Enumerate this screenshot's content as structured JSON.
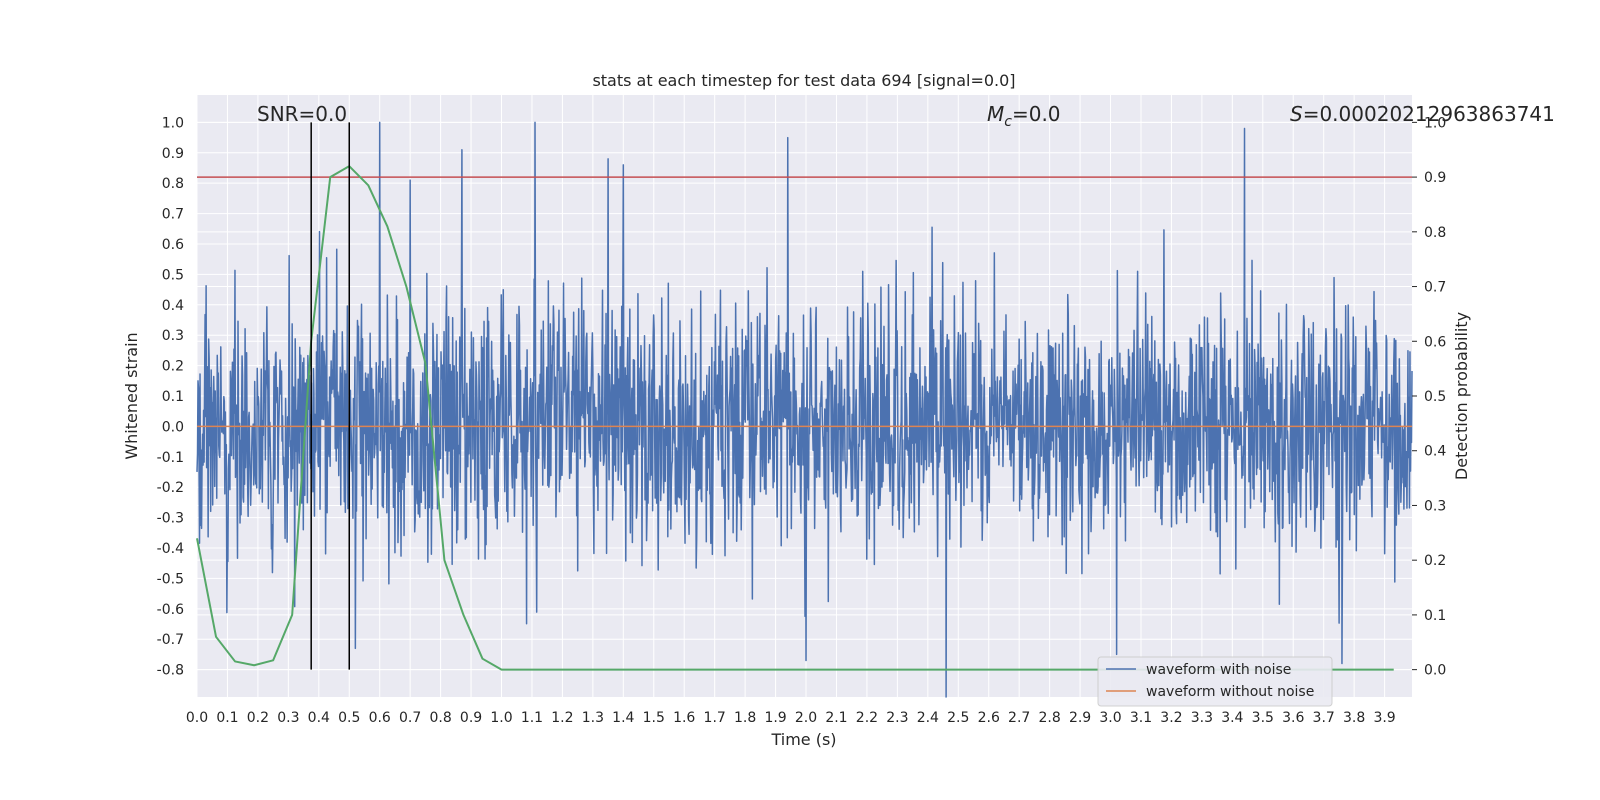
{
  "chart_data": {
    "type": "line",
    "title": "stats at each timestep for test data 694 [signal=0.0]",
    "xlabel": "Time (s)",
    "ylabel_left": "Whitened strain",
    "ylabel_right": "Detection probability",
    "xlim": [
      0.0,
      3.99
    ],
    "ylim_left": [
      -0.89,
      1.09
    ],
    "ylim_right": [
      -0.05,
      1.05
    ],
    "x_ticks": [
      "0.0",
      "0.1",
      "0.2",
      "0.3",
      "0.4",
      "0.5",
      "0.6",
      "0.7",
      "0.8",
      "0.9",
      "1.0",
      "1.1",
      "1.2",
      "1.3",
      "1.4",
      "1.5",
      "1.6",
      "1.7",
      "1.8",
      "1.9",
      "2.0",
      "2.1",
      "2.2",
      "2.3",
      "2.4",
      "2.5",
      "2.6",
      "2.7",
      "2.8",
      "2.9",
      "3.0",
      "3.1",
      "3.2",
      "3.3",
      "3.4",
      "3.5",
      "3.6",
      "3.7",
      "3.8",
      "3.9"
    ],
    "y_ticks_left": [
      "-0.8",
      "-0.7",
      "-0.6",
      "-0.5",
      "-0.4",
      "-0.3",
      "-0.2",
      "-0.1",
      "0.0",
      "0.1",
      "0.2",
      "0.3",
      "0.4",
      "0.5",
      "0.6",
      "0.7",
      "0.8",
      "0.9",
      "1.0"
    ],
    "y_ticks_right": [
      "0.0",
      "0.1",
      "0.2",
      "0.3",
      "0.4",
      "0.5",
      "0.6",
      "0.7",
      "0.8",
      "0.9",
      "1.0"
    ],
    "annotations": {
      "snr": "SNR=0.0",
      "mc": "Mc=0.0",
      "mc_main": "M",
      "mc_sub": "c",
      "mc_rest": "=0.0",
      "s": "S=0.00020212963863741",
      "s_main": "S",
      "s_rest": "=0.00020212963863741"
    },
    "legend": {
      "placement": "lower right",
      "entries": [
        {
          "name": "waveform with noise",
          "color": "#4c72b0"
        },
        {
          "name": "waveform without noise",
          "color": "#dd8452"
        }
      ]
    },
    "series": [
      {
        "name": "waveform with noise",
        "axis": "left",
        "color": "#4c72b0",
        "kind": "noise",
        "x_range": [
          0.0,
          3.99
        ],
        "typical_range": [
          -0.4,
          0.4
        ],
        "peaks": [
          {
            "x": 0.6,
            "y": 1.0
          },
          {
            "x": 1.11,
            "y": 1.0
          },
          {
            "x": 3.44,
            "y": 0.98
          },
          {
            "x": 1.94,
            "y": 0.95
          },
          {
            "x": 0.87,
            "y": 0.91
          },
          {
            "x": 1.35,
            "y": 0.88
          },
          {
            "x": 1.4,
            "y": 0.86
          },
          {
            "x": 0.7,
            "y": 0.81
          },
          {
            "x": 2.46,
            "y": -0.89
          },
          {
            "x": 2.0,
            "y": -0.77
          },
          {
            "x": 3.76,
            "y": -0.78
          },
          {
            "x": 3.02,
            "y": -0.75
          },
          {
            "x": 0.52,
            "y": -0.73
          }
        ]
      },
      {
        "name": "waveform without noise",
        "axis": "left",
        "color": "#dd8452",
        "x": [
          0.0,
          3.99
        ],
        "y": [
          0.0,
          0.0
        ]
      },
      {
        "name": "detection probability",
        "axis": "right",
        "color": "#55a868",
        "x": [
          0.0,
          0.0625,
          0.125,
          0.1875,
          0.25,
          0.3125,
          0.375,
          0.4375,
          0.5,
          0.5625,
          0.625,
          0.6875,
          0.75,
          0.8125,
          0.875,
          0.9375,
          1.0,
          1.0625,
          1.5,
          2.0,
          2.5,
          3.0,
          3.5,
          3.93
        ],
        "y": [
          0.24,
          0.06,
          0.015,
          0.008,
          0.017,
          0.1,
          0.6,
          0.9,
          0.92,
          0.885,
          0.81,
          0.7,
          0.56,
          0.2,
          0.1,
          0.02,
          0.0,
          0.0,
          0.0,
          0.0,
          0.0,
          0.0,
          0.0,
          0.0
        ]
      }
    ],
    "threshold": {
      "axis": "right",
      "y": 0.9,
      "color": "#c44e52"
    },
    "vertical_markers": {
      "x": [
        0.375,
        0.5
      ],
      "y_from": -0.8,
      "y_to": 1.0,
      "axis": "left",
      "color": "#000000"
    }
  }
}
